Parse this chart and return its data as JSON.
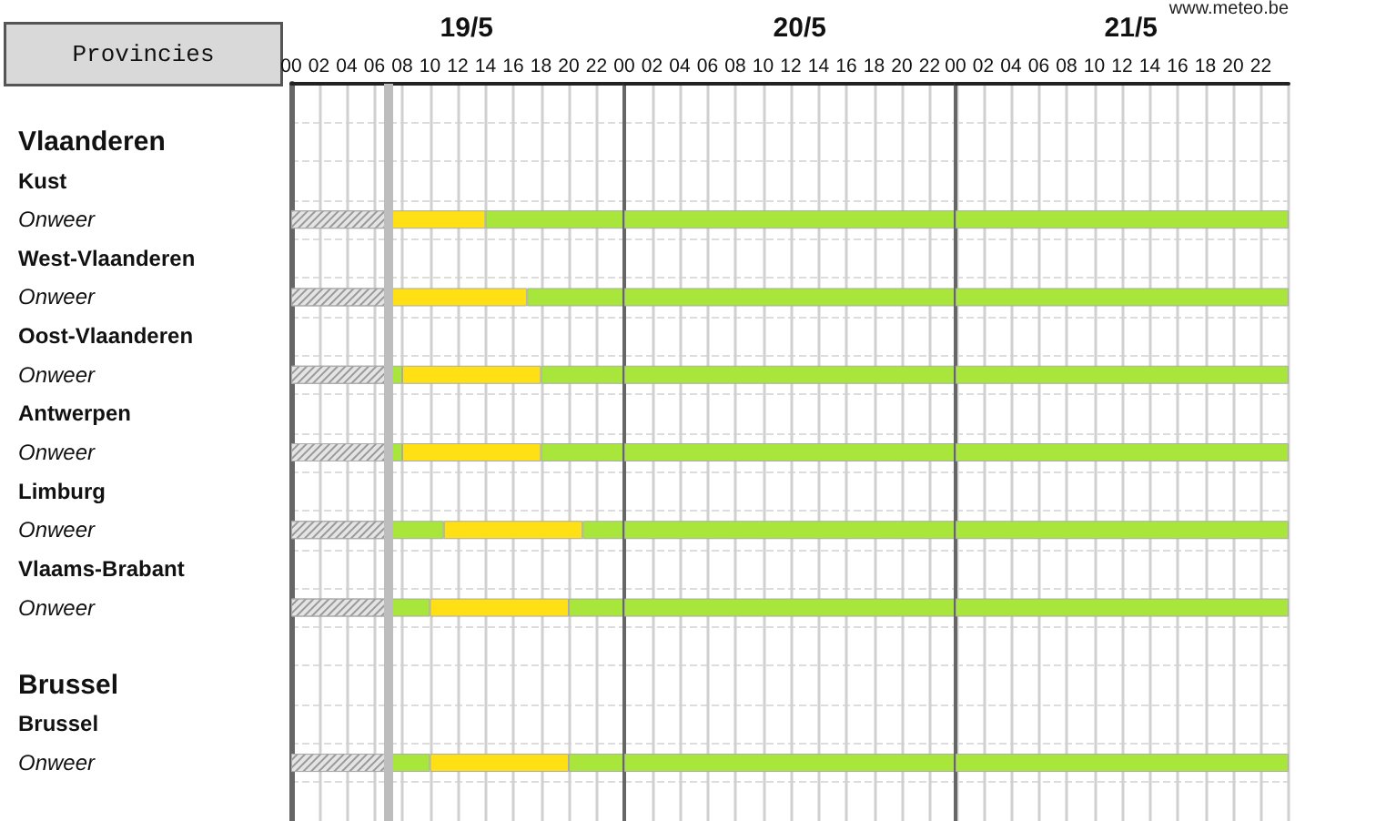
{
  "chart_data": [
    {
      "type": "bar",
      "orientation": "horizontal",
      "stacked": true,
      "title": "19/5",
      "ylabel": "Provincies",
      "categories": [
        null,
        "Vlaanderen",
        "Kust",
        "Onweer",
        "West-Vlaanderen",
        "Onweer",
        "Oost-Vlaanderen",
        "Onweer",
        "Antwerpen",
        "Onweer",
        "Limburg",
        "Onweer",
        "Vlaams-Brabant",
        "Onweer",
        null,
        "Brussel",
        "Brussel",
        "Onweer",
        null
      ],
      "series": [
        {
          "color": "#e4e4e4",
          "values": [
            null,
            null,
            null,
            7,
            null,
            7,
            null,
            7,
            null,
            7,
            null,
            7,
            null,
            7,
            null,
            null,
            null,
            7,
            null
          ]
        },
        {
          "color": "#a8e63c",
          "values": [
            null,
            null,
            null,
            null,
            null,
            null,
            null,
            1,
            null,
            1,
            null,
            4,
            null,
            3,
            null,
            null,
            null,
            3,
            null
          ]
        },
        {
          "color": "#ffe014",
          "values": [
            null,
            null,
            null,
            7,
            null,
            10,
            null,
            10,
            null,
            10,
            null,
            10,
            null,
            10,
            null,
            null,
            null,
            10,
            null
          ]
        },
        {
          "color": "#a8e63c",
          "values": [
            null,
            null,
            null,
            10,
            null,
            7,
            null,
            6,
            null,
            6,
            null,
            3,
            null,
            4,
            null,
            null,
            null,
            4,
            null
          ]
        }
      ],
      "xlim": [
        0,
        24
      ],
      "xticks": [
        {
          "value": 0,
          "label": "00"
        },
        {
          "value": 2,
          "label": "02"
        },
        {
          "value": 4,
          "label": "04"
        },
        {
          "value": 6,
          "label": "06"
        },
        {
          "value": 8,
          "label": "08"
        },
        10,
        12,
        14,
        16,
        18,
        20,
        22
      ],
      "ref_lines": [
        {
          "axis": "x",
          "value": 7,
          "label": null,
          "color": "#bdbdbd"
        }
      ],
      "grid": true
    },
    {
      "type": "bar",
      "orientation": "horizontal",
      "stacked": true,
      "title": "20/5",
      "tick_labels": "x",
      "categories": [
        null,
        null,
        null,
        null,
        null,
        null,
        null,
        null,
        null,
        null,
        null,
        null,
        null,
        null,
        null,
        null,
        null,
        null,
        null
      ],
      "series": [
        {
          "color": "#a8e63c",
          "values": [
            null,
            null,
            null,
            24,
            null,
            24,
            null,
            24,
            null,
            24,
            null,
            24,
            null,
            24,
            null,
            null,
            null,
            24,
            null
          ]
        }
      ],
      "xlim": [
        0,
        24
      ],
      "xticks": [
        {
          "value": 0,
          "label": "00"
        },
        {
          "value": 2,
          "label": "02"
        },
        {
          "value": 4,
          "label": "04"
        },
        {
          "value": 6,
          "label": "06"
        },
        {
          "value": 8,
          "label": "08"
        },
        10,
        12,
        14,
        16,
        18,
        20,
        22
      ],
      "grid": true
    },
    {
      "type": "bar",
      "orientation": "horizontal",
      "stacked": true,
      "title": "21/5",
      "tick_labels": "x",
      "annotations": [
        "www.meteo.be"
      ],
      "categories": [
        null,
        null,
        null,
        null,
        null,
        null,
        null,
        null,
        null,
        null,
        null,
        null,
        null,
        null,
        null,
        null,
        null,
        null,
        null
      ],
      "series": [
        {
          "color": "#a8e63c",
          "values": [
            null,
            null,
            null,
            24,
            null,
            24,
            null,
            24,
            null,
            24,
            null,
            24,
            null,
            24,
            null,
            null,
            null,
            24,
            null
          ]
        }
      ],
      "xlim": [
        0,
        24
      ],
      "xticks": [
        {
          "value": 0,
          "label": "00"
        },
        {
          "value": 2,
          "label": "02"
        },
        {
          "value": 4,
          "label": "04"
        },
        {
          "value": 6,
          "label": "06"
        },
        {
          "value": 8,
          "label": "08"
        },
        10,
        12,
        14,
        16,
        18,
        20,
        22
      ],
      "grid": true
    }
  ]
}
